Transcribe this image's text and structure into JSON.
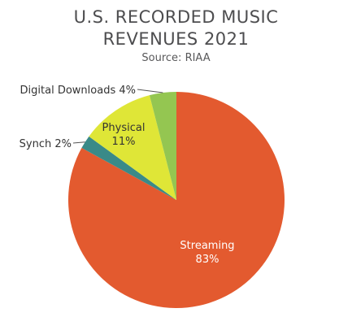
{
  "chart_data": {
    "type": "pie",
    "title_lines": [
      "U.S. RECORDED MUSIC",
      "REVENUES 2021"
    ],
    "subtitle": "Source: RIAA",
    "slices": [
      {
        "label": "Streaming",
        "value": 83,
        "value_label": "83%",
        "color": "#e35a2f",
        "text_color": "#ffffff",
        "label_position": "inside"
      },
      {
        "label": "Synch 2%",
        "value": 2,
        "color": "#3a8a88",
        "text_color": "#333333",
        "label_position": "outside-left"
      },
      {
        "label": "Physical",
        "value": 11,
        "value_label": "11%",
        "color": "#dfe637",
        "text_color": "#333333",
        "label_position": "inside"
      },
      {
        "label": "Digital Downloads 4%",
        "value": 4,
        "color": "#94c651",
        "text_color": "#333333",
        "label_position": "outside-top-left"
      }
    ]
  }
}
